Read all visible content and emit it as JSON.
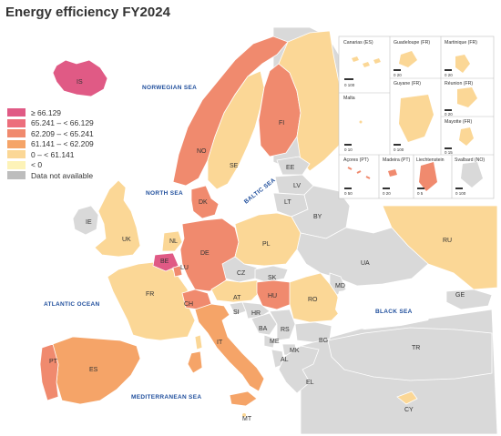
{
  "title": "Energy efficiency FY2024",
  "legend": [
    {
      "label": "≥ 66.129",
      "color": "#e05a85"
    },
    {
      "label": "65.241 – < 66.129",
      "color": "#ec6e7c"
    },
    {
      "label": "62.209 – < 65.241",
      "color": "#f08a6e"
    },
    {
      "label": "61.141 – < 62.209",
      "color": "#f5a468"
    },
    {
      "label": "0 – < 61.141",
      "color": "#fbd796"
    },
    {
      "label": "< 0",
      "color": "#fdf3b8"
    },
    {
      "label": "Data not available",
      "color": "#bdbdbd"
    }
  ],
  "seas": {
    "norwegian": "NORWEGIAN SEA",
    "north": "NORTH SEA",
    "baltic": "BALTIC SEA",
    "atlantic": "ATLANTIC OCEAN",
    "black": "BLACK SEA",
    "mediterranean": "MEDITERRANEAN SEA"
  },
  "country_codes": [
    "IS",
    "NO",
    "SE",
    "FI",
    "EE",
    "LV",
    "LT",
    "BY",
    "RU",
    "UA",
    "MD",
    "PL",
    "DK",
    "UK",
    "IE",
    "NL",
    "BE",
    "LU",
    "DE",
    "CZ",
    "SK",
    "AT",
    "HU",
    "RO",
    "FR",
    "CH",
    "SI",
    "HR",
    "BA",
    "RS",
    "ME",
    "MK",
    "AL",
    "BG",
    "TR",
    "GE",
    "EL",
    "IT",
    "ES",
    "PT",
    "MT",
    "CY"
  ],
  "insets": [
    "Canarias (ES)",
    "Guadeloupe (FR)",
    "Martinique (FR)",
    "Malta",
    "Guyane (FR)",
    "Réunion (FR)",
    "Mayotte (FR)",
    "Açores (PT)",
    "Madeira (PT)",
    "Liechtenstein",
    "Svalbard (NO)"
  ],
  "scales": [
    "0  100",
    "0  10",
    "0  20",
    "0  20",
    "0  20",
    "0  100",
    "0  15",
    "0  50",
    "0  20",
    "0  5",
    "0 100"
  ]
}
